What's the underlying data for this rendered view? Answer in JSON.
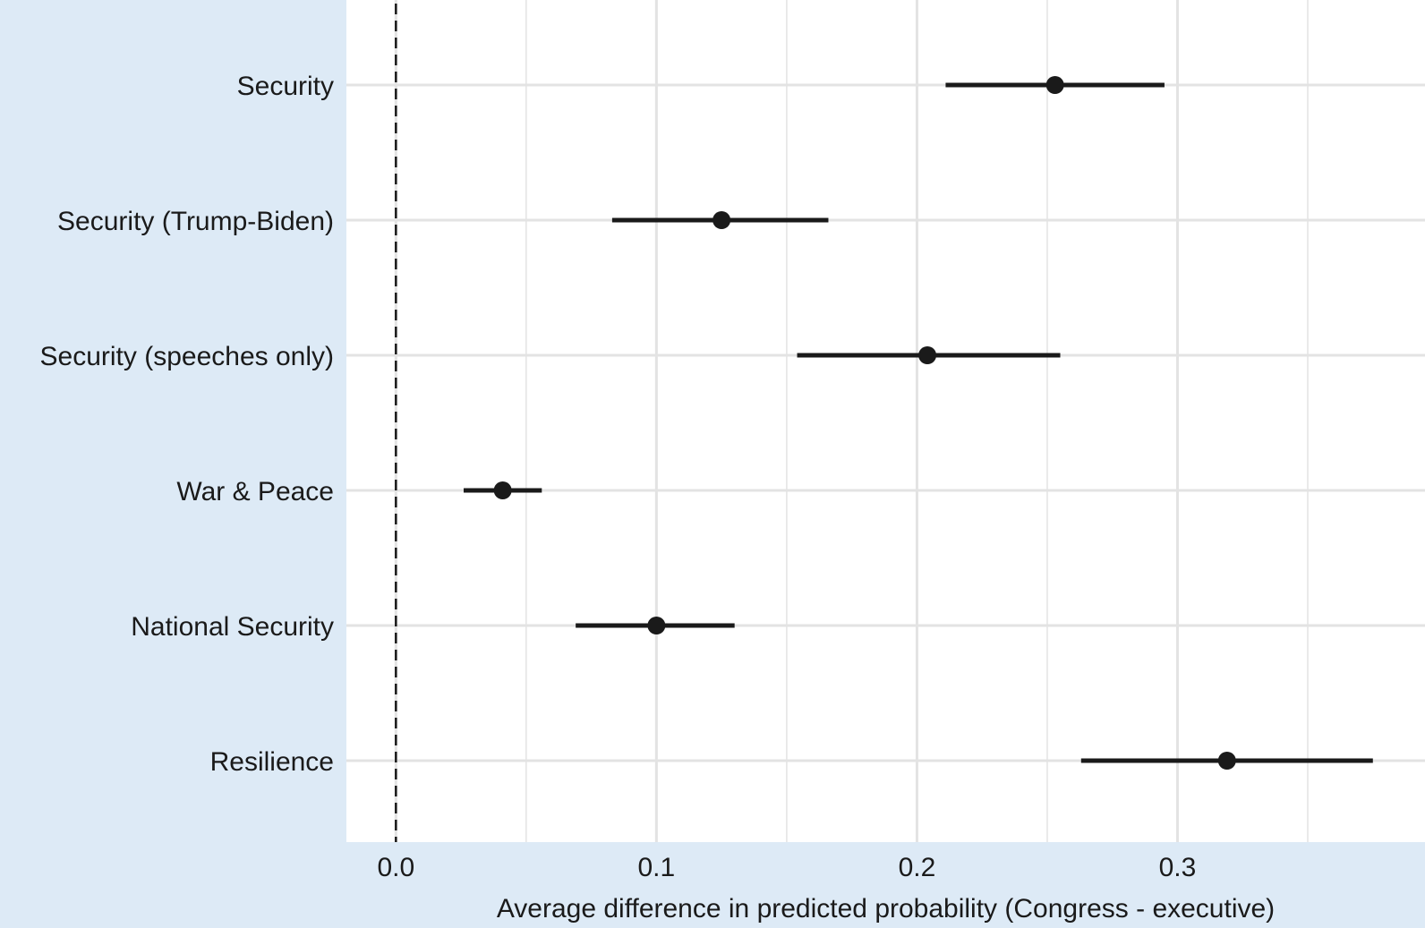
{
  "chart_data": {
    "type": "scatter",
    "subtype": "coefficient-plot-with-intervals",
    "title": "",
    "xlabel": "Average difference in predicted probability (Congress - executive)",
    "ylabel": "",
    "xlim": [
      -0.019,
      0.395
    ],
    "xticks": [
      0.0,
      0.1,
      0.2,
      0.3
    ],
    "xtick_labels": [
      "0.0",
      "0.1",
      "0.2",
      "0.3"
    ],
    "minor_xgrid": [
      0.05,
      0.15,
      0.25,
      0.35
    ],
    "reference_line": 0.0,
    "grid": true,
    "categories": [
      "Security",
      "Security (Trump-Biden)",
      "Security (speeches only)",
      "War & Peace",
      "National Security",
      "Resilience"
    ],
    "estimates": [
      0.253,
      0.125,
      0.204,
      0.041,
      0.1,
      0.319
    ],
    "lower": [
      0.211,
      0.083,
      0.154,
      0.026,
      0.069,
      0.263
    ],
    "upper": [
      0.295,
      0.166,
      0.255,
      0.056,
      0.13,
      0.375
    ]
  },
  "colors": {
    "panel": "#ffffff",
    "outer": "#ddeaf6",
    "grid": "#e3e3e3",
    "ink": "#1a1a1a"
  }
}
